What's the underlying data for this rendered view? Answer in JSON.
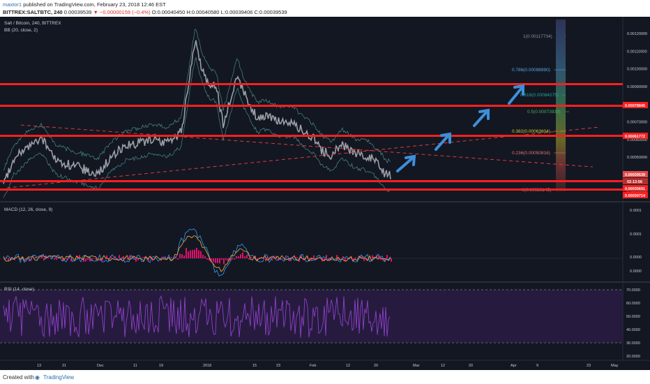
{
  "header": {
    "author": "maxtor1",
    "published": "published on TradingView.com, February 23, 2018 12:46 EST",
    "symbol": "BITTREX:SALTBTC, 240",
    "last": "0.00039539",
    "change": "−0.00000159 (−0.4%)",
    "open": "O:0.00040450",
    "high": "H:0.00040580",
    "low": "L:0.00039406",
    "close": "C:0.00039539"
  },
  "legend": {
    "series": "Salt / Bitcoin, 240, BITTREX",
    "bb": "BB (20, close, 2)",
    "macd": "MACD (12, 26, close, 9)",
    "rsi": "RSI (14, close)"
  },
  "price_axis": [
    "0.00120000",
    "0.00110000",
    "0.00100000",
    "0.00090000",
    "0.00080000",
    "0.00070000",
    "0.00060000",
    "0.00050000",
    "0.00040000",
    "0.00030000"
  ],
  "price_tags": {
    "level1": "0.00078845",
    "level2": "0.00061772",
    "current": "0.00039539",
    "countdown": "02:13:56",
    "level3": "0.00035691",
    "level4": "0.00030714"
  },
  "fib_levels": [
    {
      "label": "1(0.00117734)",
      "color": "#8a8f9c"
    },
    {
      "label": "0.786(0.00098990)",
      "color": "#5aa9e6"
    },
    {
      "label": "0.618(0.00084275)",
      "color": "#26a69a"
    },
    {
      "label": "0.5(0.00073939)",
      "color": "#4caf50"
    },
    {
      "label": "0.382(0.00063604)",
      "color": "#c6d23a"
    },
    {
      "label": "0.236(0.00050816)",
      "color": "#e57373"
    },
    {
      "label": "0(0.00030145)",
      "color": "#8a8f9c"
    }
  ],
  "macd_axis": [
    "0.0001",
    "0.0001",
    "0.0000",
    "0.0000"
  ],
  "rsi_axis": [
    "70.0000",
    "60.0000",
    "50.0000",
    "40.0000",
    "30.0000",
    "20.0000"
  ],
  "time_axis": [
    "13",
    "21",
    "Dec",
    "11",
    "19",
    "2018",
    "15",
    "23",
    "Feb",
    "12",
    "20",
    "Mar",
    "12",
    "20",
    "Apr",
    "9",
    "23",
    "May"
  ],
  "footer": {
    "created": "Created with",
    "brand": "TradingView"
  },
  "colors": {
    "background": "#131722",
    "resistance": "#ff1f1f",
    "trend": "#e03a3a",
    "arrow": "#3d8fd9",
    "macd_hist": "#e0106a",
    "rsi_line": "#8e3fc7",
    "rsi_band": "#2d1d4a"
  }
}
